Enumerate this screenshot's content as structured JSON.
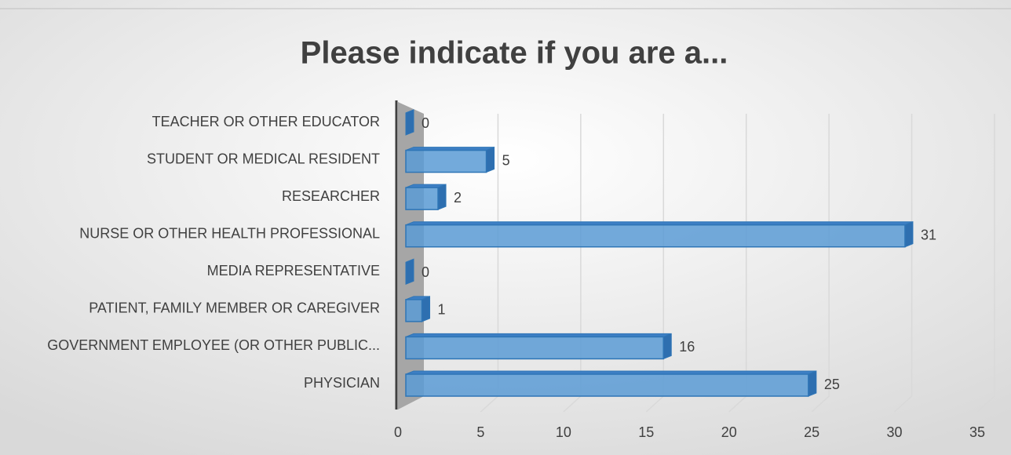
{
  "chart_data": {
    "type": "bar",
    "orientation": "horizontal",
    "title": "Please indicate if you are a...",
    "categories": [
      "TEACHER OR OTHER EDUCATOR",
      "STUDENT OR MEDICAL RESIDENT",
      "RESEARCHER",
      "NURSE OR OTHER HEALTH PROFESSIONAL",
      "MEDIA REPRESENTATIVE",
      "PATIENT, FAMILY MEMBER OR CAREGIVER",
      "GOVERNMENT EMPLOYEE (OR OTHER PUBLIC...",
      "PHYSICIAN"
    ],
    "values": [
      0,
      5,
      2,
      31,
      0,
      1,
      16,
      25
    ],
    "color": "#5b9bd5",
    "xlim": [
      0,
      35
    ],
    "xticks": [
      0,
      5,
      10,
      15,
      20,
      25,
      30,
      35
    ],
    "grid": true
  }
}
